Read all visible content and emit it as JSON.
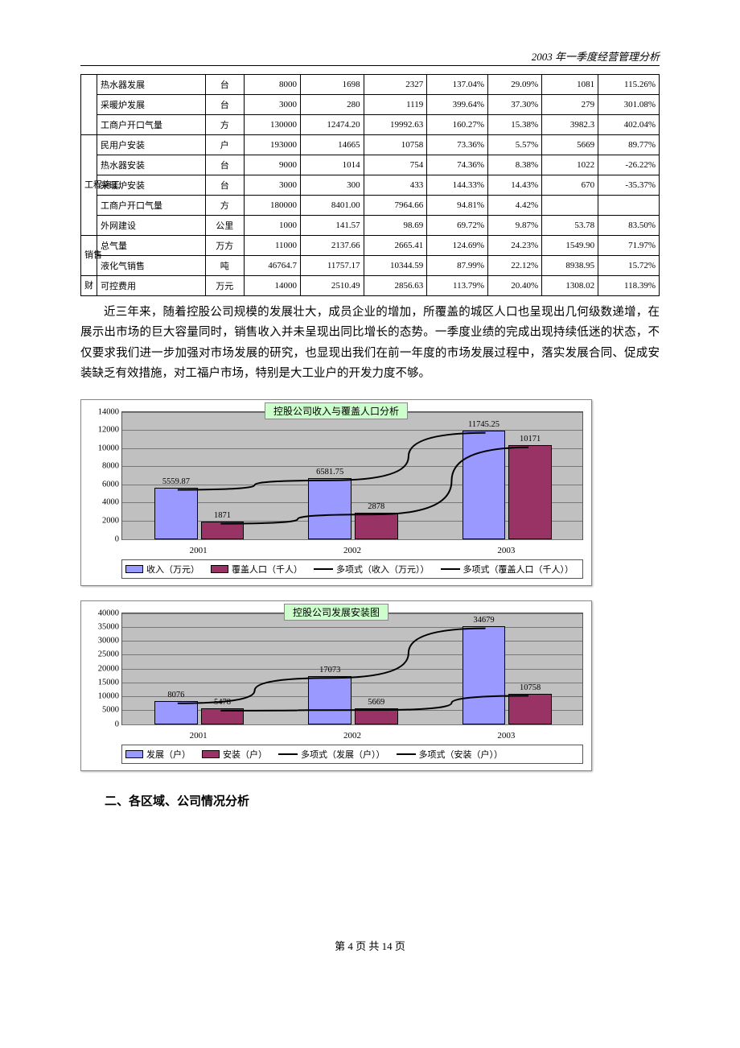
{
  "header": {
    "text": "2003 年一季度经营管理分析"
  },
  "table": {
    "groups": [
      {
        "cat": "",
        "rows": [
          {
            "name": "热水器发展",
            "unit": "台",
            "c1": "8000",
            "c2": "1698",
            "c3": "2327",
            "c4": "137.04%",
            "c5": "29.09%",
            "c6": "1081",
            "c7": "115.26%"
          },
          {
            "name": "采暖炉发展",
            "unit": "台",
            "c1": "3000",
            "c2": "280",
            "c3": "1119",
            "c4": "399.64%",
            "c5": "37.30%",
            "c6": "279",
            "c7": "301.08%"
          },
          {
            "name": "工商户开口气量",
            "unit": "方",
            "c1": "130000",
            "c2": "12474.20",
            "c3": "19992.63",
            "c4": "160.27%",
            "c5": "15.38%",
            "c6": "3982.3",
            "c7": "402.04%"
          }
        ]
      },
      {
        "cat": "工程施工",
        "rows": [
          {
            "name": "民用户安装",
            "unit": "户",
            "c1": "193000",
            "c2": "14665",
            "c3": "10758",
            "c4": "73.36%",
            "c5": "5.57%",
            "c6": "5669",
            "c7": "89.77%"
          },
          {
            "name": "热水器安装",
            "unit": "台",
            "c1": "9000",
            "c2": "1014",
            "c3": "754",
            "c4": "74.36%",
            "c5": "8.38%",
            "c6": "1022",
            "c7": "-26.22%"
          },
          {
            "name": "采暖炉安装",
            "unit": "台",
            "c1": "3000",
            "c2": "300",
            "c3": "433",
            "c4": "144.33%",
            "c5": "14.43%",
            "c6": "670",
            "c7": "-35.37%"
          },
          {
            "name": "工商户开口气量",
            "unit": "方",
            "c1": "180000",
            "c2": "8401.00",
            "c3": "7964.66",
            "c4": "94.81%",
            "c5": "4.42%",
            "c6": "",
            "c7": ""
          },
          {
            "name": "外网建设",
            "unit": "公里",
            "c1": "1000",
            "c2": "141.57",
            "c3": "98.69",
            "c4": "69.72%",
            "c5": "9.87%",
            "c6": "53.78",
            "c7": "83.50%"
          }
        ]
      },
      {
        "cat": "销售",
        "rows": [
          {
            "name": "总气量",
            "unit": "万方",
            "c1": "11000",
            "c2": "2137.66",
            "c3": "2665.41",
            "c4": "124.69%",
            "c5": "24.23%",
            "c6": "1549.90",
            "c7": "71.97%"
          },
          {
            "name": "液化气销售",
            "unit": "吨",
            "c1": "46764.7",
            "c2": "11757.17",
            "c3": "10344.59",
            "c4": "87.99%",
            "c5": "22.12%",
            "c6": "8938.95",
            "c7": "15.72%"
          }
        ]
      },
      {
        "cat": "财",
        "rows": [
          {
            "name": "可控费用",
            "unit": "万元",
            "c1": "14000",
            "c2": "2510.49",
            "c3": "2856.63",
            "c4": "113.79%",
            "c5": "20.40%",
            "c6": "1308.02",
            "c7": "118.39%"
          }
        ]
      }
    ]
  },
  "paragraph": "近三年来，随着控股公司规模的发展壮大，成员企业的增加，所覆盖的城区人口也呈现出几何级数递增，在展示出市场的巨大容量同时，销售收入并未呈现出同比增长的态势。一季度业绩的完成出现持续低迷的状态，不仅要求我们进一步加强对市场发展的研究，也显现出我们在前一年度的市场发展过程中，落实发展合同、促成安装缺乏有效措施，对工福户市场，特别是大工业户的开发力度不够。",
  "chart1": {
    "title": "控股公司收入与覆盖人口分析",
    "categories": [
      "2001",
      "2002",
      "2003"
    ],
    "ymax": 14000,
    "ytick_step": 2000,
    "series_blue": {
      "name": "收入（万元）",
      "values": [
        5559.87,
        6581.75,
        11745.25
      ],
      "color": "#9999ff"
    },
    "series_red": {
      "name": "覆盖人口（千人）",
      "values": [
        1871,
        2878,
        10171
      ],
      "color": "#993366"
    },
    "trend1": "多项式（收入（万元））",
    "trend2": "多项式（覆盖人口（千人））",
    "background": "#c0c0c0",
    "grid_color": "#777777"
  },
  "chart2": {
    "title": "控股公司发展安装图",
    "categories": [
      "2001",
      "2002",
      "2003"
    ],
    "ymax": 40000,
    "ytick_step": 5000,
    "series_blue": {
      "name": "发展（户）",
      "values": [
        8076,
        17073,
        34679
      ],
      "color": "#9999ff"
    },
    "series_red": {
      "name": "安装（户）",
      "values": [
        5478,
        5669,
        10758
      ],
      "color": "#993366"
    },
    "trend1": "多项式（发展（户））",
    "trend2": "多项式（安装（户））",
    "background": "#c0c0c0",
    "grid_color": "#777777"
  },
  "section2_heading": "二、各区域、公司情况分析",
  "footer": {
    "text": "第 4 页 共 14 页"
  }
}
